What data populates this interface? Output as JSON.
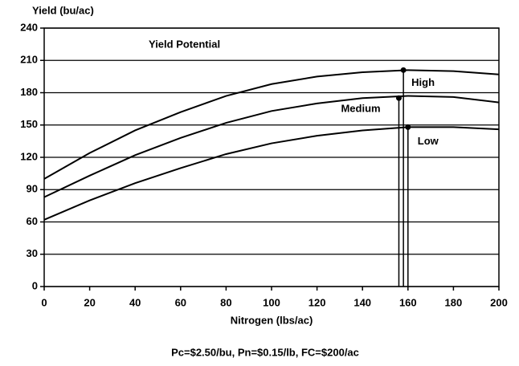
{
  "chart_data": {
    "type": "line",
    "y_label": "Yield (bu/ac)",
    "x_label": "Nitrogen (lbs/ac)",
    "annotation": "Yield Potential",
    "footnote": "Pc=$2.50/bu, Pn=$0.15/lb, FC=$200/ac",
    "x": [
      0,
      20,
      40,
      60,
      80,
      100,
      120,
      140,
      160,
      180,
      200
    ],
    "series": [
      {
        "name": "High",
        "color": "#000000",
        "values": [
          100,
          124,
          145,
          162,
          177,
          188,
          195,
          199,
          201,
          200,
          197
        ],
        "optimum": {
          "x": 158,
          "y": 201
        }
      },
      {
        "name": "Medium",
        "color": "#000000",
        "values": [
          83,
          103,
          122,
          138,
          152,
          163,
          170,
          175,
          177,
          176,
          171
        ],
        "optimum": {
          "x": 156,
          "y": 175
        }
      },
      {
        "name": "Low",
        "color": "#000000",
        "values": [
          62,
          80,
          96,
          110,
          123,
          133,
          140,
          145,
          148,
          148,
          146
        ],
        "optimum": {
          "x": 160,
          "y": 148
        }
      }
    ],
    "xlim": [
      0,
      200
    ],
    "xticks": [
      0,
      20,
      40,
      60,
      80,
      100,
      120,
      140,
      160,
      180,
      200
    ],
    "ylim": [
      0,
      240
    ],
    "yticks": [
      0,
      30,
      60,
      90,
      120,
      150,
      180,
      210,
      240
    ],
    "grid": true
  }
}
